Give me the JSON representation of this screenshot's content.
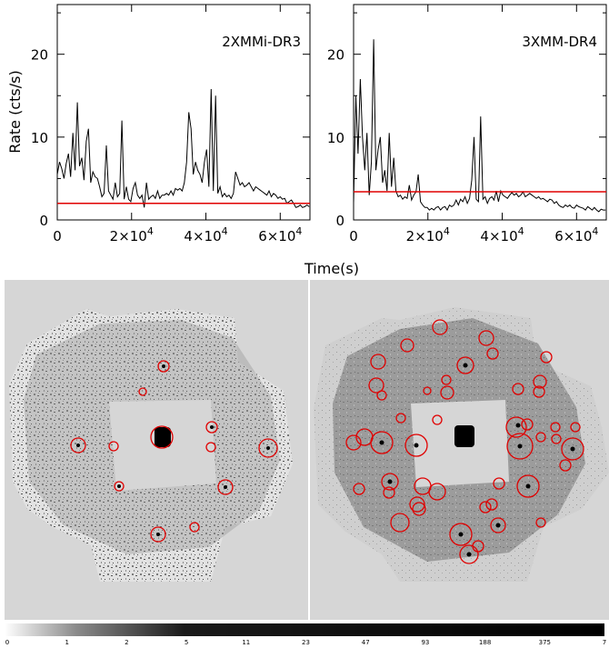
{
  "chart_data": [
    {
      "type": "line",
      "title": "2XMMi-DR3",
      "ylabel": "Rate (cts/s)",
      "xlabel": "",
      "xlim": [
        0,
        68000
      ],
      "ylim": [
        0,
        26
      ],
      "x_ticks": [
        {
          "value": 0,
          "mant": "0",
          "exp": ""
        },
        {
          "value": 20000,
          "mant": "2×10",
          "exp": "4"
        },
        {
          "value": 40000,
          "mant": "4×10",
          "exp": "4"
        },
        {
          "value": 60000,
          "mant": "6×10",
          "exp": "4"
        }
      ],
      "y_ticks": [
        "0",
        "10",
        "20"
      ],
      "threshold": 2.0,
      "series": [
        {
          "x": [
            0,
            600,
            1200,
            1800,
            2400,
            3000,
            3600,
            4200,
            4800,
            5400,
            6000,
            6600,
            7200,
            7800,
            8400,
            9000,
            9600,
            10200,
            10800,
            11400,
            12000,
            12600,
            13200,
            13800,
            14400,
            15000,
            15600,
            16200,
            16800,
            17400,
            18000,
            18600,
            19200,
            19800,
            20400,
            21000,
            21600,
            22200,
            22800,
            23400,
            24000,
            24600,
            25200,
            25800,
            26400,
            27000,
            27600,
            28200,
            28800,
            29400,
            30000,
            30600,
            31200,
            31800,
            32400,
            33000,
            33600,
            34200,
            34800,
            35400,
            36000,
            36600,
            37200,
            37800,
            38400,
            39000,
            39600,
            40200,
            40800,
            41400,
            42000,
            42600,
            43200,
            43800,
            44400,
            45000,
            45600,
            46200,
            46800,
            47400,
            48000,
            48600,
            49200,
            49800,
            50400,
            51000,
            51600,
            52200,
            52800,
            53400,
            54000,
            54600,
            55200,
            55800,
            56400,
            57000,
            57600,
            58200,
            58800,
            59400,
            60000,
            60600,
            61200,
            61800,
            62400,
            63000,
            63600,
            64200,
            64800,
            65400,
            66000,
            66600,
            67200,
            67800
          ],
          "values": [
            5.5,
            7.0,
            6.2,
            5.0,
            6.8,
            8.0,
            5.2,
            10.5,
            6.0,
            14.2,
            6.5,
            7.5,
            4.8,
            9.5,
            11.0,
            4.5,
            5.8,
            5.2,
            5.0,
            4.0,
            2.8,
            3.2,
            9.0,
            3.5,
            3.0,
            2.5,
            4.5,
            2.8,
            3.2,
            12.0,
            2.5,
            4.0,
            2.5,
            2.2,
            3.8,
            4.5,
            3.0,
            2.6,
            3.0,
            1.5,
            4.5,
            2.5,
            2.8,
            3.0,
            2.6,
            3.5,
            2.6,
            3.0,
            3.0,
            3.2,
            3.0,
            3.5,
            3.0,
            3.8,
            3.6,
            3.8,
            3.5,
            4.5,
            7.0,
            13.0,
            11.0,
            5.5,
            7.0,
            6.0,
            5.5,
            4.5,
            7.0,
            8.5,
            4.0,
            15.8,
            3.5,
            15.0,
            3.2,
            4.0,
            2.8,
            3.2,
            2.8,
            3.0,
            2.6,
            3.2,
            5.8,
            5.0,
            4.2,
            4.5,
            4.0,
            4.2,
            4.5,
            4.0,
            3.5,
            4.0,
            3.8,
            3.6,
            3.4,
            3.2,
            3.0,
            3.5,
            2.8,
            3.2,
            3.0,
            2.6,
            2.8,
            2.5,
            2.6,
            2.0,
            2.2,
            2.4,
            2.0,
            1.5,
            1.6,
            1.8,
            1.5,
            1.6,
            1.8,
            1.6
          ]
        }
      ]
    },
    {
      "type": "line",
      "title": "3XMM-DR4",
      "ylabel": "",
      "xlabel": "Time(s)",
      "xlim": [
        0,
        68000
      ],
      "ylim": [
        0,
        26
      ],
      "x_ticks": [
        {
          "value": 0,
          "mant": "0",
          "exp": ""
        },
        {
          "value": 20000,
          "mant": "2×10",
          "exp": "4"
        },
        {
          "value": 40000,
          "mant": "4×10",
          "exp": "4"
        },
        {
          "value": 60000,
          "mant": "6×10",
          "exp": "4"
        }
      ],
      "y_ticks": [
        "0",
        "10",
        "20"
      ],
      "threshold": 3.4,
      "series": [
        {
          "x": [
            0,
            600,
            1200,
            1800,
            2400,
            3000,
            3600,
            4200,
            4800,
            5400,
            6000,
            6600,
            7200,
            7800,
            8400,
            9000,
            9600,
            10200,
            10800,
            11400,
            12000,
            12600,
            13200,
            13800,
            14400,
            15000,
            15600,
            16200,
            16800,
            17400,
            18000,
            18600,
            19200,
            19800,
            20400,
            21000,
            21600,
            22200,
            22800,
            23400,
            24000,
            24600,
            25200,
            25800,
            26400,
            27000,
            27600,
            28200,
            28800,
            29400,
            30000,
            30600,
            31200,
            31800,
            32400,
            33000,
            33600,
            34200,
            34800,
            35400,
            36000,
            36600,
            37200,
            37800,
            38400,
            39000,
            39600,
            40200,
            40800,
            41400,
            42000,
            42600,
            43200,
            43800,
            44400,
            45000,
            45600,
            46200,
            46800,
            47400,
            48000,
            48600,
            49200,
            49800,
            50400,
            51000,
            51600,
            52200,
            52800,
            53400,
            54000,
            54600,
            55200,
            55800,
            56400,
            57000,
            57600,
            58200,
            58800,
            59400,
            60000,
            60600,
            61200,
            61800,
            62400,
            63000,
            63600,
            64200,
            64800,
            65400,
            66000,
            66600,
            67200,
            67800
          ],
          "values": [
            2.0,
            15.0,
            8.0,
            17.0,
            10.0,
            6.0,
            10.5,
            3.0,
            7.0,
            21.8,
            6.0,
            8.5,
            10.0,
            4.5,
            6.0,
            3.5,
            10.5,
            4.0,
            7.5,
            3.5,
            2.8,
            3.0,
            2.5,
            2.8,
            2.6,
            4.2,
            2.4,
            3.0,
            3.4,
            5.5,
            2.2,
            1.8,
            1.5,
            1.5,
            1.2,
            1.4,
            1.2,
            1.5,
            1.6,
            1.2,
            1.5,
            1.6,
            1.2,
            1.8,
            1.6,
            1.8,
            2.4,
            1.8,
            2.5,
            2.2,
            2.8,
            2.0,
            2.6,
            4.8,
            10.0,
            2.5,
            2.2,
            12.5,
            2.5,
            2.8,
            2.0,
            2.6,
            2.8,
            2.4,
            3.5,
            2.2,
            3.5,
            3.0,
            2.8,
            2.6,
            3.0,
            3.3,
            3.0,
            3.2,
            2.8,
            3.0,
            3.4,
            2.8,
            3.0,
            3.2,
            3.0,
            2.8,
            2.6,
            2.8,
            2.5,
            2.6,
            2.4,
            2.2,
            2.5,
            2.4,
            2.0,
            2.2,
            1.8,
            1.6,
            1.5,
            1.8,
            1.6,
            1.8,
            1.5,
            1.4,
            1.8,
            1.6,
            1.5,
            1.4,
            1.2,
            1.6,
            1.4,
            1.2,
            1.5,
            1.2,
            1.0,
            1.3,
            1.2,
            1.2
          ]
        }
      ]
    }
  ],
  "images": {
    "colors": {
      "line": "#000000",
      "threshold": "#e00000",
      "circle": "#e00000"
    },
    "colorbar_labels": [
      "0",
      "1",
      "2",
      "5",
      "11",
      "23",
      "47",
      "93",
      "188",
      "375",
      "7"
    ]
  }
}
